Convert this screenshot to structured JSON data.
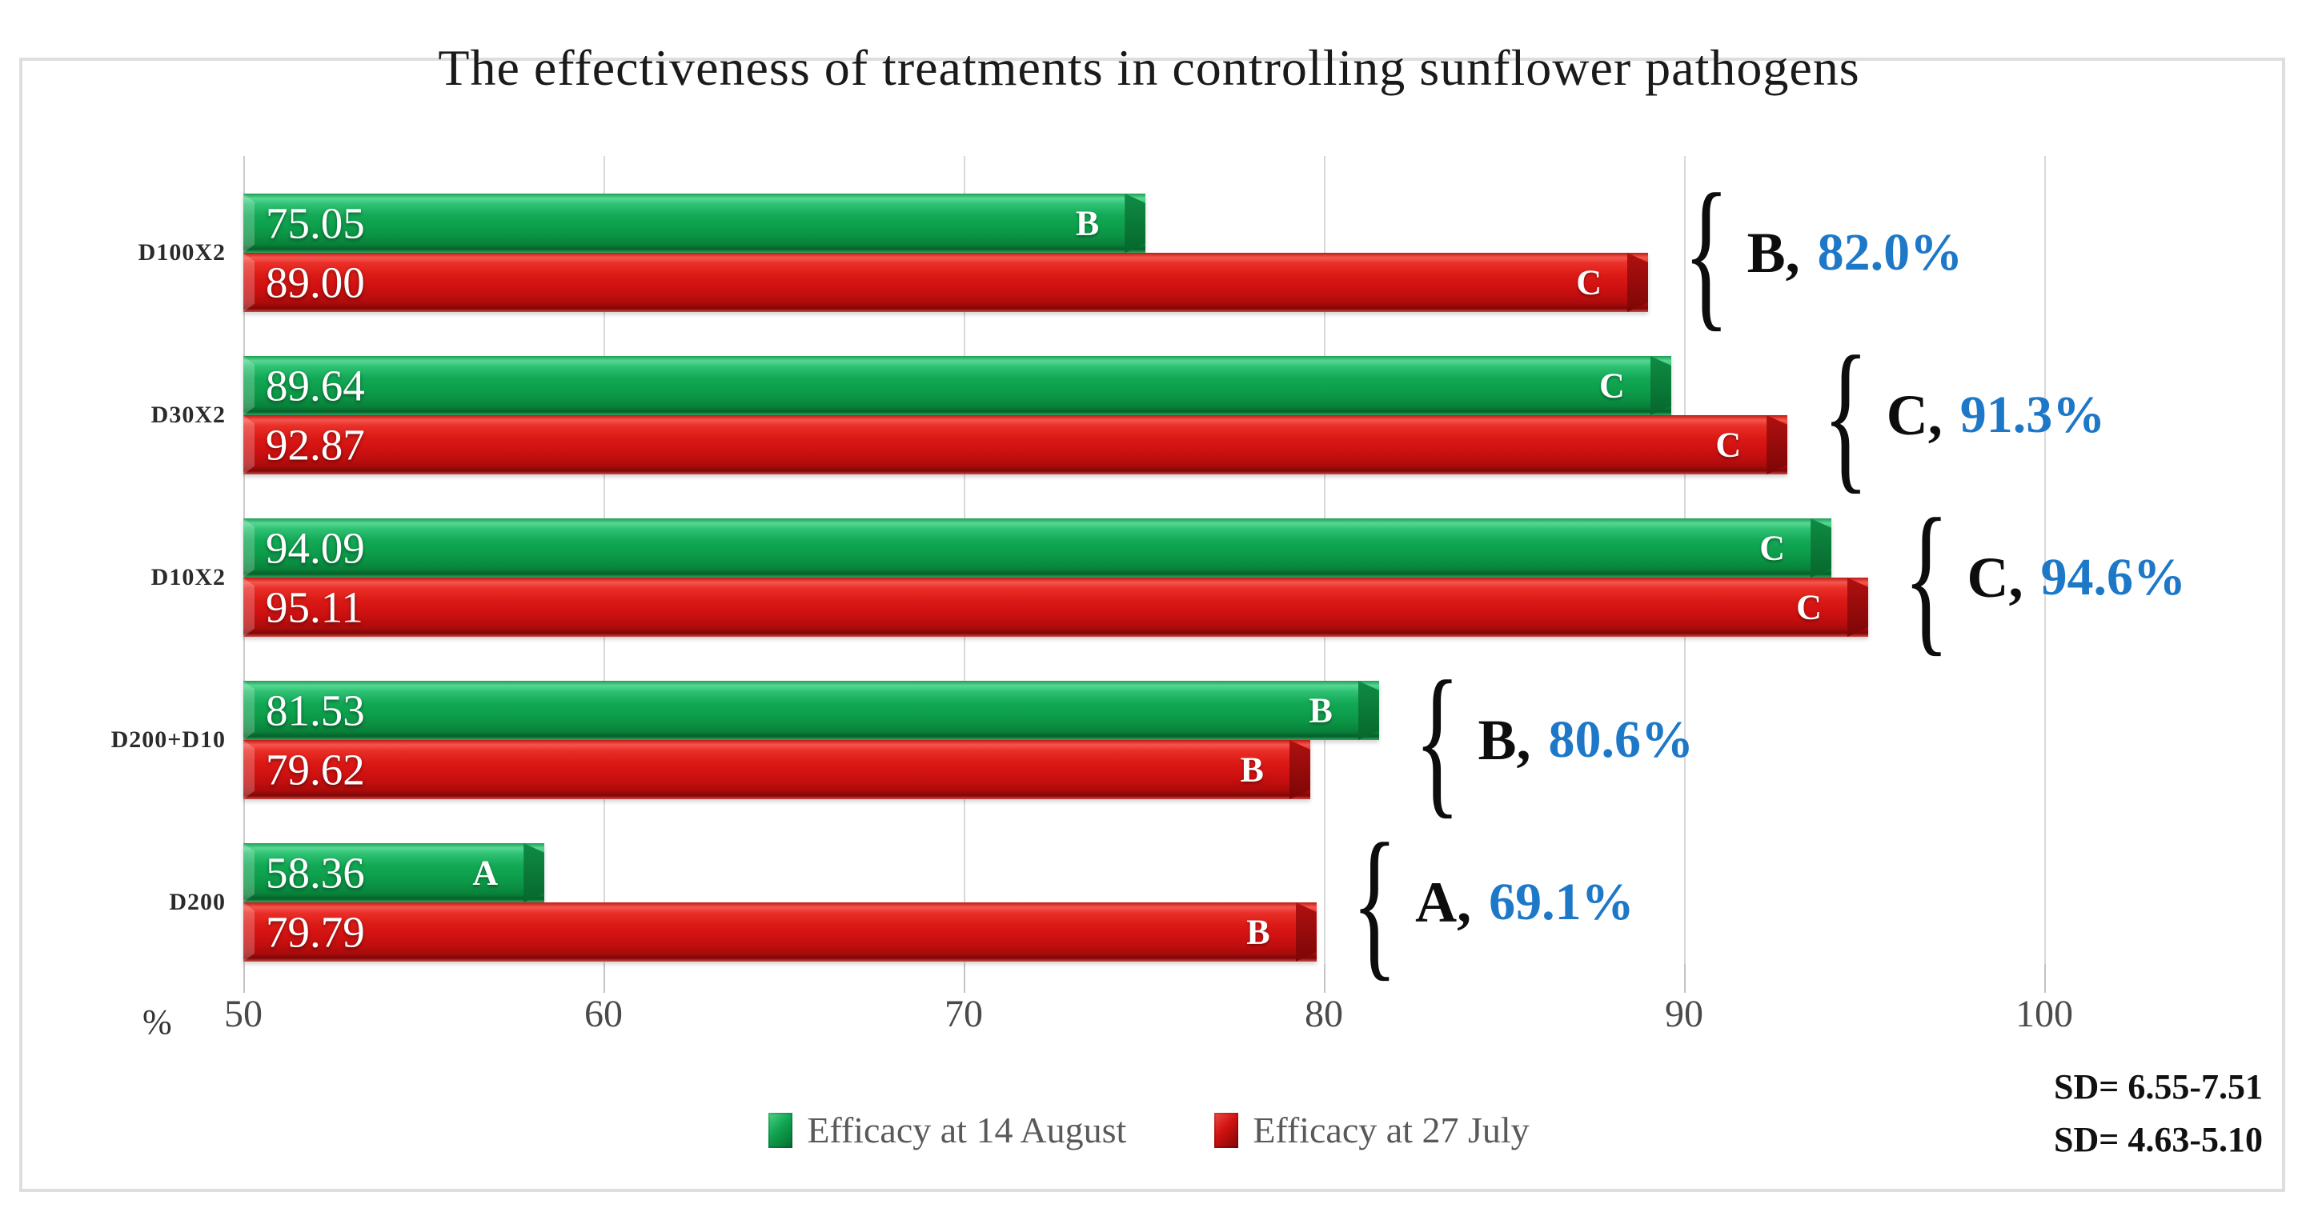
{
  "title": "The effectiveness of treatments in controlling sunflower pathogens",
  "axis": {
    "unit_label": "%",
    "ticks": [
      50,
      60,
      70,
      80,
      90,
      100
    ],
    "min": 50,
    "max": 100
  },
  "legend": [
    {
      "label": "Efficacy at 14 August",
      "color": "#0da04c"
    },
    {
      "label": "Efficacy at 27 July",
      "color": "#d21212"
    }
  ],
  "sd_notes": [
    "SD= 6.55-7.51",
    "SD= 4.63-5.10"
  ],
  "colors": {
    "green_series": "#0da04c",
    "red_series": "#d21212",
    "annotation_percent_blue": "#1e78c8",
    "gridline": "#d9d9d9",
    "axis_text": "#4a4a4a"
  },
  "chart_data": {
    "type": "bar",
    "orientation": "horizontal",
    "title": "The effectiveness of treatments in controlling sunflower pathogens",
    "categories": [
      "D100X2",
      "D30X2",
      "D10X2",
      "D200+D10",
      "D200"
    ],
    "series": [
      {
        "name": "Efficacy at 14 August",
        "color": "#0da04c",
        "values": [
          75.05,
          89.64,
          94.09,
          81.53,
          58.36
        ],
        "value_labels": [
          "75.05",
          "89.64",
          "94.09",
          "81.53",
          "58.36"
        ],
        "significance_letters": [
          "B",
          "C",
          "C",
          "B",
          "A"
        ]
      },
      {
        "name": "Efficacy at 27 July",
        "color": "#d21212",
        "values": [
          89.0,
          92.87,
          95.11,
          79.62,
          79.79
        ],
        "value_labels": [
          "89.00",
          "92.87",
          "95.11",
          "79.62",
          "79.79"
        ],
        "significance_letters": [
          "C",
          "C",
          "C",
          "B",
          "B"
        ]
      }
    ],
    "group_annotations": [
      {
        "letter": "B",
        "percent": "82.0%"
      },
      {
        "letter": "C",
        "percent": "91.3%"
      },
      {
        "letter": "C",
        "percent": "94.6%"
      },
      {
        "letter": "B",
        "percent": "80.6%"
      },
      {
        "letter": "A",
        "percent": "69.1%"
      }
    ],
    "xlabel": "%",
    "xlim": [
      50,
      100
    ],
    "xticks": [
      50,
      60,
      70,
      80,
      90,
      100
    ],
    "grid": true,
    "legend_position": "bottom"
  }
}
